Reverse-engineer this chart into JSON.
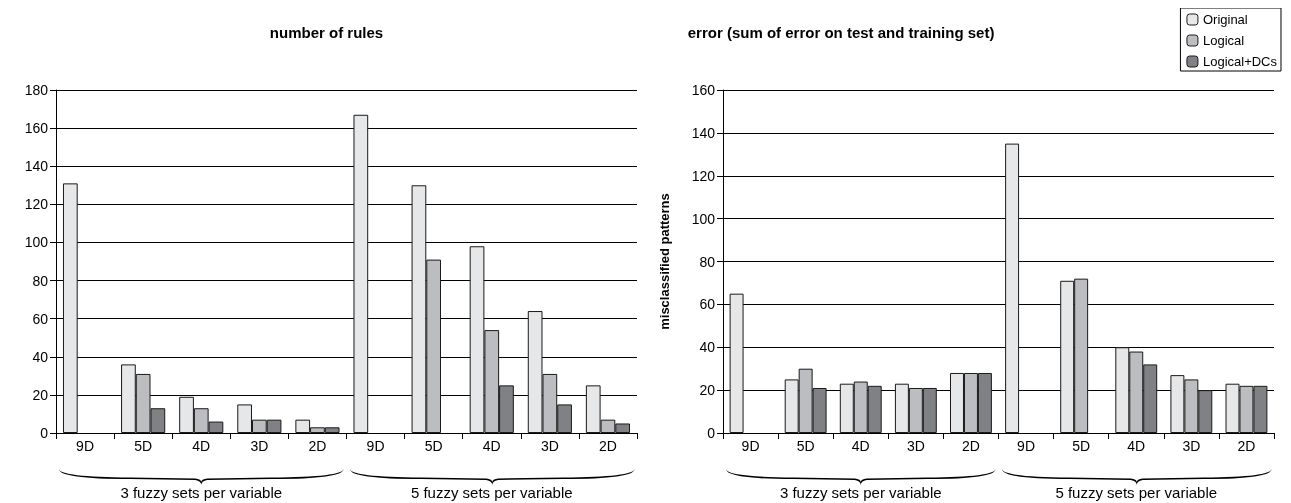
{
  "chart_data": [
    {
      "type": "bar",
      "title": "number of rules",
      "categories": [
        "9D",
        "5D",
        "4D",
        "3D",
        "2D",
        "9D",
        "5D",
        "4D",
        "3D",
        "2D"
      ],
      "series": [
        {
          "color": "#e6e7e8",
          "values": [
            131,
            36,
            19,
            15,
            7,
            167,
            130,
            98,
            64,
            25
          ]
        },
        {
          "color": "#bcbdc0",
          "values": [
            null,
            31,
            13,
            7,
            3,
            null,
            91,
            54,
            31,
            7
          ]
        },
        {
          "color": "#808184",
          "values": [
            null,
            13,
            6,
            7,
            3,
            null,
            null,
            25,
            15,
            5
          ]
        }
      ],
      "ylim": [
        0,
        180
      ],
      "yticks": [
        0,
        20,
        40,
        60,
        80,
        100,
        120,
        140,
        160,
        180
      ],
      "grid": "y",
      "legend": false,
      "annotations": [
        "3 fuzzy sets per variable",
        "5 fuzzy sets per variable"
      ]
    },
    {
      "type": "bar",
      "title": "error (sum of error on test and training set)",
      "ylabel": "misclassified patterns",
      "categories": [
        "9D",
        "5D",
        "4D",
        "3D",
        "2D",
        "9D",
        "5D",
        "4D",
        "3D",
        "2D"
      ],
      "series": [
        {
          "name": "Original",
          "color": "#e6e7e8",
          "values": [
            65,
            25,
            23,
            23,
            28,
            135,
            71,
            40,
            27,
            23
          ]
        },
        {
          "name": "Logical",
          "color": "#bcbdc0",
          "values": [
            null,
            30,
            24,
            21,
            28,
            null,
            72,
            38,
            25,
            22
          ]
        },
        {
          "name": "Logical+DCs",
          "color": "#808184",
          "values": [
            null,
            21,
            22,
            21,
            28,
            null,
            null,
            32,
            20,
            22
          ]
        }
      ],
      "ylim": [
        0,
        160
      ],
      "yticks": [
        0,
        20,
        40,
        60,
        80,
        100,
        120,
        140,
        160
      ],
      "grid": "y",
      "legend": "top right",
      "annotations": [
        "3 fuzzy sets per variable",
        "5 fuzzy sets per variable"
      ]
    }
  ]
}
